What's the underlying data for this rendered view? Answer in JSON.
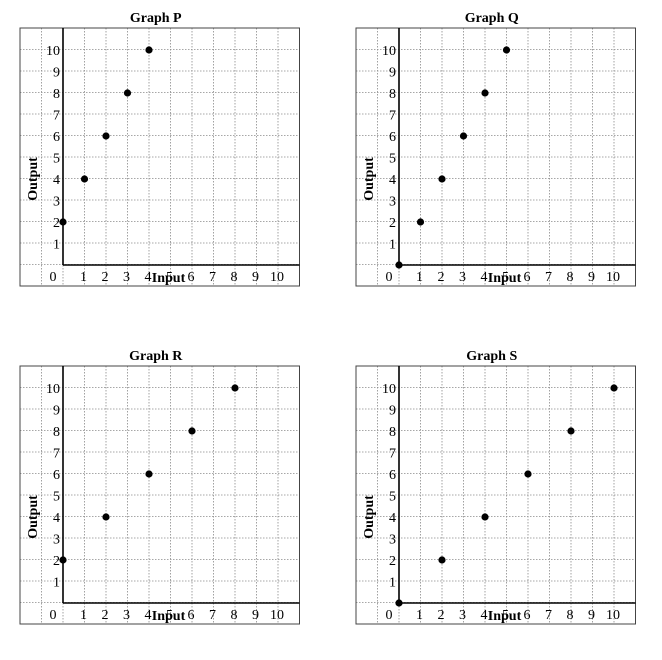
{
  "chart_data": [
    {
      "type": "scatter",
      "title": "Graph P",
      "xlabel": "Input",
      "ylabel": "Output",
      "x_ticks": [
        "0",
        "1",
        "2",
        "3",
        "4",
        "5",
        "6",
        "7",
        "8",
        "9",
        "10"
      ],
      "y_ticks": [
        "1",
        "2",
        "3",
        "4",
        "5",
        "6",
        "7",
        "8",
        "9",
        "10"
      ],
      "xlim": [
        0,
        10
      ],
      "ylim": [
        0,
        10
      ],
      "grid": true,
      "points": [
        {
          "x": 0,
          "y": 2
        },
        {
          "x": 1,
          "y": 4
        },
        {
          "x": 2,
          "y": 6
        },
        {
          "x": 3,
          "y": 8
        },
        {
          "x": 4,
          "y": 10
        }
      ]
    },
    {
      "type": "scatter",
      "title": "Graph Q",
      "xlabel": "Input",
      "ylabel": "Output",
      "x_ticks": [
        "0",
        "1",
        "2",
        "3",
        "4",
        "5",
        "6",
        "7",
        "8",
        "9",
        "10"
      ],
      "y_ticks": [
        "1",
        "2",
        "3",
        "4",
        "5",
        "6",
        "7",
        "8",
        "9",
        "10"
      ],
      "xlim": [
        0,
        10
      ],
      "ylim": [
        0,
        10
      ],
      "grid": true,
      "points": [
        {
          "x": 0,
          "y": 0
        },
        {
          "x": 1,
          "y": 2
        },
        {
          "x": 2,
          "y": 4
        },
        {
          "x": 3,
          "y": 6
        },
        {
          "x": 4,
          "y": 8
        },
        {
          "x": 5,
          "y": 10
        }
      ]
    },
    {
      "type": "scatter",
      "title": "Graph R",
      "xlabel": "Input",
      "ylabel": "Output",
      "x_ticks": [
        "0",
        "1",
        "2",
        "3",
        "4",
        "5",
        "6",
        "7",
        "8",
        "9",
        "10"
      ],
      "y_ticks": [
        "1",
        "2",
        "3",
        "4",
        "5",
        "6",
        "7",
        "8",
        "9",
        "10"
      ],
      "xlim": [
        0,
        10
      ],
      "ylim": [
        0,
        10
      ],
      "grid": true,
      "points": [
        {
          "x": 0,
          "y": 2
        },
        {
          "x": 2,
          "y": 4
        },
        {
          "x": 4,
          "y": 6
        },
        {
          "x": 6,
          "y": 8
        },
        {
          "x": 8,
          "y": 10
        }
      ]
    },
    {
      "type": "scatter",
      "title": "Graph S",
      "xlabel": "Input",
      "ylabel": "Output",
      "x_ticks": [
        "0",
        "1",
        "2",
        "3",
        "4",
        "5",
        "6",
        "7",
        "8",
        "9",
        "10"
      ],
      "y_ticks": [
        "1",
        "2",
        "3",
        "4",
        "5",
        "6",
        "7",
        "8",
        "9",
        "10"
      ],
      "xlim": [
        0,
        10
      ],
      "ylim": [
        0,
        10
      ],
      "grid": true,
      "points": [
        {
          "x": 0,
          "y": 0
        },
        {
          "x": 2,
          "y": 2
        },
        {
          "x": 4,
          "y": 4
        },
        {
          "x": 6,
          "y": 6
        },
        {
          "x": 8,
          "y": 8
        },
        {
          "x": 10,
          "y": 10
        }
      ]
    }
  ]
}
